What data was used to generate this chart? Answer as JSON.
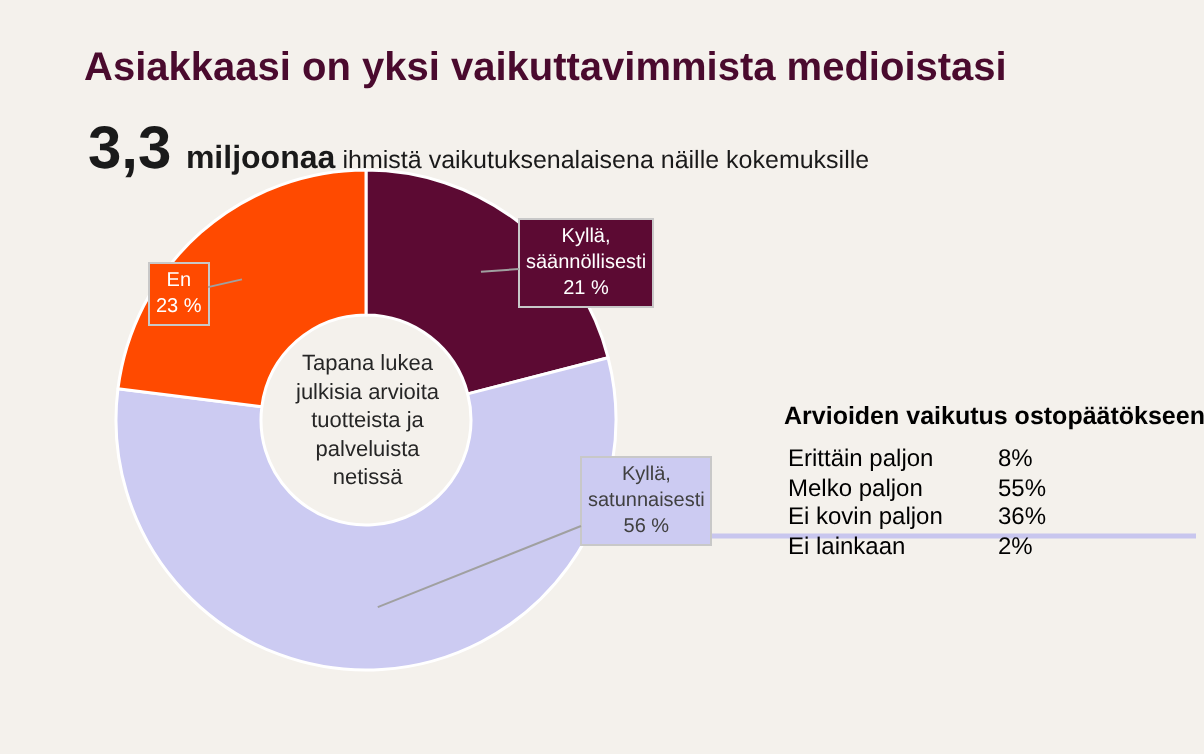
{
  "chart_data": {
    "type": "donut",
    "title": "Asiakkaasi on yksi vaikuttavimmista medioistasi",
    "subtitle": "3,3 miljoonaa ihmistä vaikutuksenalaisena näille kokemuksille",
    "categories": [
      "Kyllä,\nsäännöllisesti",
      "Kyllä,\nsatunnaisesti",
      "En"
    ],
    "values": [
      21,
      56,
      23
    ],
    "value_labels": [
      "21 %",
      "56 %",
      "23 %"
    ],
    "colors": [
      "#5c0a33",
      "#cccbf2",
      "#ff4a00"
    ],
    "annotations": [
      "Tapana lukea\njulkisia arvioita\ntuotteista ja\npalveluista\nnetissä",
      "Arvioiden vaikutus ostopäätökseen",
      "Erittäin paljon",
      "8%",
      "Melko paljon",
      "55%",
      "Ei kovin paljon",
      "36%",
      "Ei lainkaan",
      "2%"
    ],
    "legend": false
  }
}
